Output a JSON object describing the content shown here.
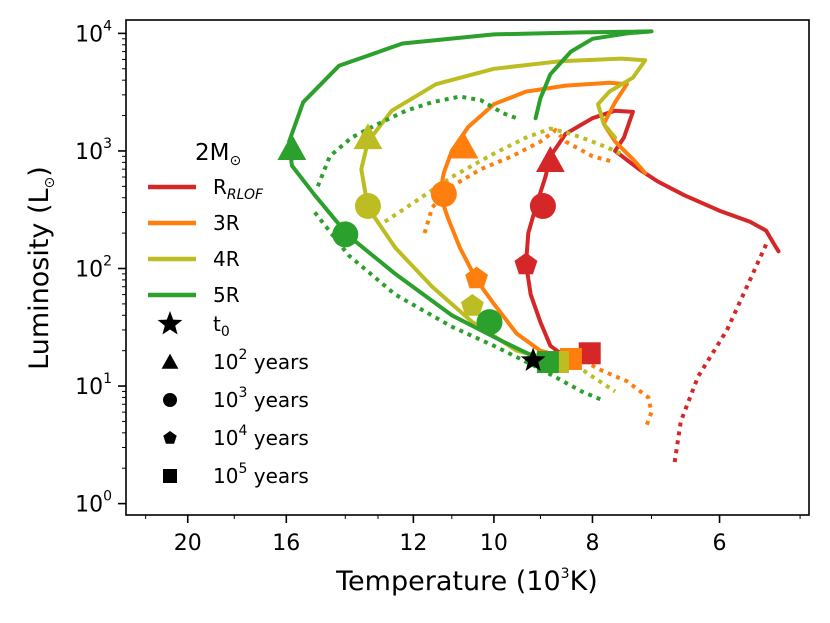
{
  "chart_data": {
    "type": "line",
    "title": "",
    "xlabel": "Temperature (10",
    "xlabel_sup": "3",
    "xlabel_end": "K)",
    "ylabel": "Luminosity (L",
    "ylabel_sym": "⊙",
    "ylabel_end": ")",
    "x_scale": "log",
    "x_inverted": true,
    "x_ticks": [
      20,
      16,
      12,
      10,
      8,
      6
    ],
    "xlim": [
      23,
      4.9
    ],
    "y_scale": "log",
    "y_ticks": [
      {
        "base": "10",
        "exp": "0",
        "value": 1
      },
      {
        "base": "10",
        "exp": "1",
        "value": 10
      },
      {
        "base": "10",
        "exp": "2",
        "value": 100
      },
      {
        "base": "10",
        "exp": "3",
        "value": 1000
      },
      {
        "base": "10",
        "exp": "4",
        "value": 10000
      }
    ],
    "ylim": [
      0.8,
      13000
    ],
    "grid": false,
    "legend": {
      "position": "left",
      "title_main": "2M",
      "title_sym": "⊙",
      "series_entries": [
        {
          "label": "R",
          "sub": "RLOF",
          "color": "#d62728"
        },
        {
          "label": "3R",
          "sub": "",
          "color": "#ff7f0e"
        },
        {
          "label": "4R",
          "sub": "",
          "color": "#bcbd22"
        },
        {
          "label": "5R",
          "sub": "",
          "color": "#2ca02c"
        }
      ],
      "marker_entries": [
        {
          "marker": "star",
          "label": "t",
          "sub": "0",
          "sup": "",
          "label_end": ""
        },
        {
          "marker": "triangle",
          "label": "10",
          "sup": "2",
          "sub": "",
          "label_end": " years"
        },
        {
          "marker": "circle",
          "label": "10",
          "sup": "3",
          "sub": "",
          "label_end": " years"
        },
        {
          "marker": "pentagon",
          "label": "10",
          "sup": "4",
          "sub": "",
          "label_end": " years"
        },
        {
          "marker": "square",
          "label": "10",
          "sup": "5",
          "sub": "",
          "label_end": " years"
        }
      ]
    },
    "series": [
      {
        "name": "R_RLOF",
        "color": "#d62728",
        "solid": [
          [
            8.1,
            19
          ],
          [
            8.3,
            19
          ],
          [
            8.6,
            19
          ],
          [
            8.8,
            22
          ],
          [
            9.0,
            35
          ],
          [
            9.2,
            60
          ],
          [
            9.3,
            110
          ],
          [
            9.25,
            200
          ],
          [
            9.1,
            330
          ],
          [
            8.9,
            600
          ],
          [
            8.8,
            900
          ],
          [
            8.5,
            1400
          ],
          [
            8.0,
            1900
          ],
          [
            7.6,
            2200
          ],
          [
            7.3,
            2150
          ],
          [
            7.45,
            1300
          ],
          [
            7.6,
            1000
          ],
          [
            7.2,
            700
          ],
          [
            6.9,
            550
          ],
          [
            6.5,
            420
          ],
          [
            6.0,
            310
          ],
          [
            5.6,
            250
          ],
          [
            5.4,
            210
          ],
          [
            5.3,
            160
          ],
          [
            5.25,
            140
          ]
        ],
        "dotted": [
          [
            5.4,
            160
          ],
          [
            5.6,
            80
          ],
          [
            5.9,
            30
          ],
          [
            6.3,
            12
          ],
          [
            6.55,
            5
          ],
          [
            6.65,
            2.1
          ]
        ],
        "markers": [
          {
            "type": "triangle",
            "x": 8.8,
            "y": 830
          },
          {
            "type": "circle",
            "x": 8.95,
            "y": 340
          },
          {
            "type": "pentagon",
            "x": 9.3,
            "y": 108
          },
          {
            "type": "square",
            "x": 8.05,
            "y": 19
          }
        ]
      },
      {
        "name": "3R",
        "color": "#ff7f0e",
        "solid": [
          [
            8.6,
            18
          ],
          [
            9.0,
            20
          ],
          [
            9.5,
            28
          ],
          [
            10.0,
            50
          ],
          [
            10.4,
            80
          ],
          [
            10.8,
            150
          ],
          [
            11.1,
            270
          ],
          [
            11.3,
            430
          ],
          [
            11.2,
            650
          ],
          [
            11.0,
            1000
          ],
          [
            10.6,
            1600
          ],
          [
            10.0,
            2500
          ],
          [
            9.3,
            3200
          ],
          [
            8.5,
            3600
          ],
          [
            7.7,
            3800
          ],
          [
            7.4,
            3700
          ],
          [
            7.6,
            2600
          ],
          [
            7.8,
            1700
          ],
          [
            7.6,
            1200
          ],
          [
            7.3,
            850
          ],
          [
            7.1,
            650
          ]
        ],
        "dotted": [
          [
            8.3,
            18
          ],
          [
            7.9,
            14
          ],
          [
            7.4,
            11
          ],
          [
            7.05,
            8
          ],
          [
            7.0,
            6
          ],
          [
            7.1,
            4.3
          ]
        ],
        "dotted2": [
          [
            11.7,
            200
          ],
          [
            11.5,
            330
          ],
          [
            11.0,
            500
          ],
          [
            10.3,
            700
          ],
          [
            9.6,
            900
          ],
          [
            9.0,
            1200
          ],
          [
            8.7,
            1500
          ],
          [
            8.5,
            1200
          ],
          [
            8.0,
            900
          ],
          [
            7.6,
            800
          ]
        ],
        "markers": [
          {
            "type": "triangle",
            "x": 10.7,
            "y": 1080
          },
          {
            "type": "circle",
            "x": 11.2,
            "y": 430
          },
          {
            "type": "pentagon",
            "x": 10.4,
            "y": 82
          },
          {
            "type": "square",
            "x": 8.4,
            "y": 17
          }
        ]
      },
      {
        "name": "4R",
        "color": "#bcbd22",
        "solid": [
          [
            8.8,
            17
          ],
          [
            9.5,
            20
          ],
          [
            10.5,
            35
          ],
          [
            11.5,
            70
          ],
          [
            12.5,
            150
          ],
          [
            13.3,
            330
          ],
          [
            13.5,
            700
          ],
          [
            13.3,
            1200
          ],
          [
            12.6,
            2200
          ],
          [
            11.4,
            3700
          ],
          [
            10.0,
            5000
          ],
          [
            8.6,
            5800
          ],
          [
            7.5,
            6100
          ],
          [
            7.1,
            5900
          ],
          [
            7.3,
            4200
          ],
          [
            7.7,
            3200
          ],
          [
            7.9,
            2500
          ],
          [
            7.8,
            1700
          ],
          [
            7.6,
            1300
          ]
        ],
        "dotted": [
          [
            12.8,
            250
          ],
          [
            11.9,
            380
          ],
          [
            11.0,
            600
          ],
          [
            10.0,
            950
          ],
          [
            9.3,
            1300
          ],
          [
            8.8,
            1550
          ],
          [
            8.4,
            1400
          ],
          [
            8.0,
            1200
          ],
          [
            7.7,
            1050
          ],
          [
            7.5,
            950
          ]
        ],
        "dotted2": [
          [
            8.3,
            15
          ],
          [
            8.0,
            12
          ],
          [
            7.6,
            9
          ]
        ],
        "markers": [
          {
            "type": "triangle",
            "x": 13.3,
            "y": 1300
          },
          {
            "type": "circle",
            "x": 13.3,
            "y": 340
          },
          {
            "type": "pentagon",
            "x": 10.5,
            "y": 48
          },
          {
            "type": "square",
            "x": 8.65,
            "y": 16
          }
        ]
      },
      {
        "name": "5R",
        "color": "#2ca02c",
        "solid": [
          [
            8.9,
            16
          ],
          [
            9.8,
            24
          ],
          [
            11.0,
            40
          ],
          [
            12.5,
            90
          ],
          [
            13.9,
            190
          ],
          [
            15.0,
            420
          ],
          [
            15.8,
            750
          ],
          [
            15.9,
            1200
          ],
          [
            15.4,
            2600
          ],
          [
            14.2,
            5300
          ],
          [
            12.3,
            8200
          ],
          [
            10.0,
            9800
          ],
          [
            8.2,
            10200
          ],
          [
            7.0,
            10400
          ],
          [
            7.4,
            10000
          ],
          [
            8.0,
            9000
          ],
          [
            8.4,
            7000
          ],
          [
            8.8,
            4500
          ],
          [
            9.0,
            2800
          ],
          [
            9.1,
            1900
          ]
        ],
        "dotted": [
          [
            14.9,
            500
          ],
          [
            14.5,
            900
          ],
          [
            13.8,
            1300
          ],
          [
            13.0,
            1700
          ],
          [
            12.2,
            2200
          ],
          [
            11.5,
            2600
          ],
          [
            10.8,
            2900
          ],
          [
            10.3,
            2700
          ],
          [
            9.8,
            2100
          ],
          [
            9.5,
            1900
          ]
        ],
        "dotted2": [
          [
            15.0,
            300
          ],
          [
            13.9,
            130
          ],
          [
            12.5,
            60
          ],
          [
            11.0,
            32
          ],
          [
            10.0,
            22
          ],
          [
            9.0,
            14
          ],
          [
            8.2,
            9
          ],
          [
            7.8,
            7.5
          ]
        ],
        "markers": [
          {
            "type": "triangle",
            "x": 15.8,
            "y": 1050
          },
          {
            "type": "circle",
            "x": 14.0,
            "y": 195
          },
          {
            "type": "circle",
            "x": 10.1,
            "y": 35
          },
          {
            "type": "square",
            "x": 8.85,
            "y": 16
          }
        ]
      }
    ],
    "t0": {
      "x": 9.15,
      "y": 16.5,
      "color": "#000000"
    }
  }
}
